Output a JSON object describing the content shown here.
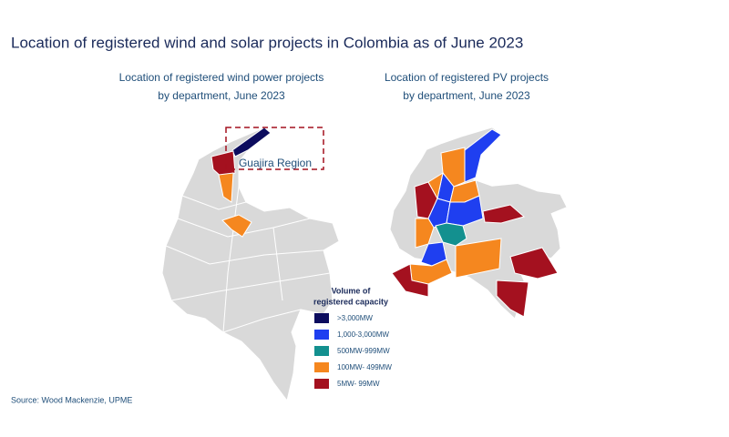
{
  "title": "Location of registered  wind and solar projects  in Colombia as of June 2023",
  "wind_map": {
    "title_line1": "Location of registered wind power projects",
    "title_line2": "by department,  June 2023",
    "annotation": "Guajira Region"
  },
  "pv_map": {
    "title_line1": "Location of registered PV projects",
    "title_line2": "by department,  June 2023"
  },
  "legend": {
    "title_line1": "Volume of",
    "title_line2": "registered capacity",
    "items": [
      {
        "label": ">3,000MW",
        "color": "#0c0c5e"
      },
      {
        "label": "1,000-3,000MW",
        "color": "#1f3ff0"
      },
      {
        "label": "500MW-999MW",
        "color": "#13908f"
      },
      {
        "label": "100MW- 499MW",
        "color": "#f5871f"
      },
      {
        "label": "5MW- 99MW",
        "color": "#a4111f"
      }
    ]
  },
  "source": "Source: Wood Mackenzie, UPME"
}
